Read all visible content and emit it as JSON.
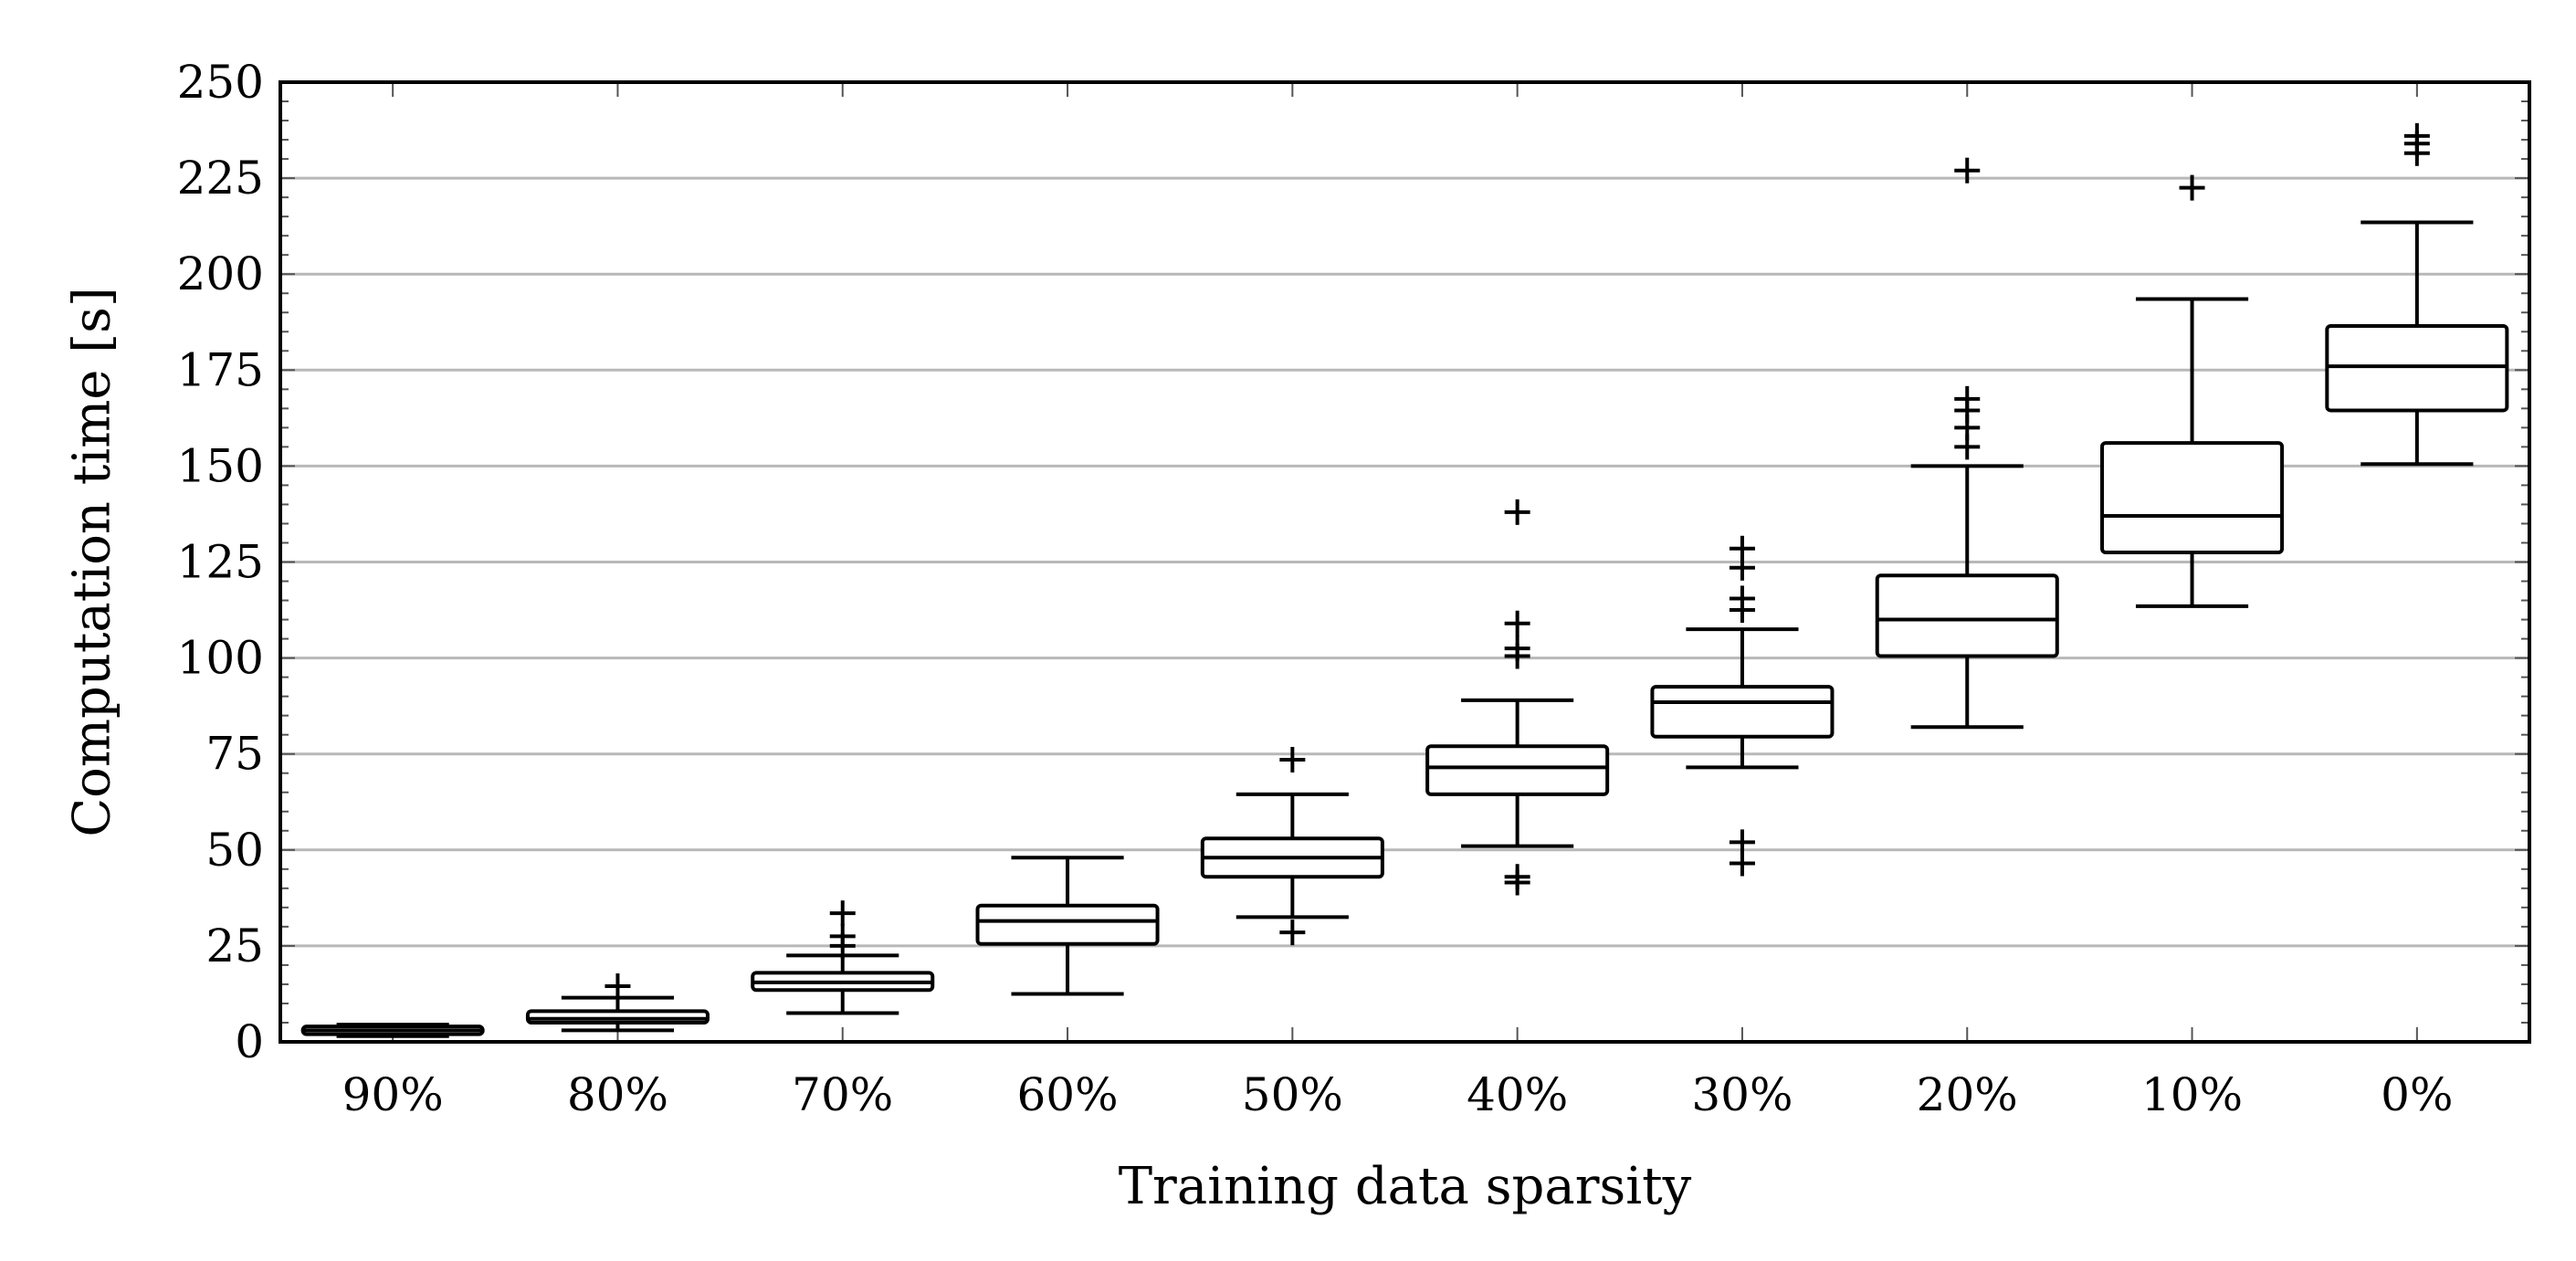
{
  "chart_data": {
    "type": "boxplot",
    "xlabel": "Training data sparsity",
    "ylabel": "Computation time [s]",
    "ylim": [
      0,
      250
    ],
    "yticks": [
      0,
      25,
      50,
      75,
      100,
      125,
      150,
      175,
      200,
      225,
      250
    ],
    "ytick_labels": [
      "0",
      "25",
      "50",
      "75",
      "100",
      "125",
      "150",
      "175",
      "200",
      "225",
      "250"
    ],
    "grid": "horizontal",
    "categories": [
      "90%",
      "80%",
      "70%",
      "60%",
      "50%",
      "40%",
      "30%",
      "20%",
      "10%",
      "0%"
    ],
    "boxes": [
      {
        "category": "90%",
        "whisker_low": 1.5,
        "q1": 2.0,
        "median": 3.0,
        "q3": 4.0,
        "whisker_high": 4.5,
        "outliers": []
      },
      {
        "category": "80%",
        "whisker_low": 3.0,
        "q1": 5.0,
        "median": 6.0,
        "q3": 8.0,
        "whisker_high": 11.5,
        "outliers": [
          14.5
        ]
      },
      {
        "category": "70%",
        "whisker_low": 7.5,
        "q1": 13.5,
        "median": 15.5,
        "q3": 18.0,
        "whisker_high": 22.5,
        "outliers": [
          25,
          27.5,
          33.5
        ]
      },
      {
        "category": "60%",
        "whisker_low": 12.5,
        "q1": 25.5,
        "median": 31.5,
        "q3": 35.5,
        "whisker_high": 48.0,
        "outliers": []
      },
      {
        "category": "50%",
        "whisker_low": 32.5,
        "q1": 43.0,
        "median": 48.0,
        "q3": 53.0,
        "whisker_high": 64.5,
        "outliers": [
          28.5,
          73.5
        ]
      },
      {
        "category": "40%",
        "whisker_low": 51.0,
        "q1": 64.5,
        "median": 71.5,
        "q3": 77.0,
        "whisker_high": 89.0,
        "outliers": [
          41.5,
          43.0,
          100.5,
          102.5,
          109.0,
          138.0
        ]
      },
      {
        "category": "30%",
        "whisker_low": 71.5,
        "q1": 79.5,
        "median": 88.5,
        "q3": 92.5,
        "whisker_high": 107.5,
        "outliers": [
          46.5,
          52.0,
          112.5,
          115.5,
          123.5,
          128.5
        ]
      },
      {
        "category": "20%",
        "whisker_low": 82.0,
        "q1": 100.5,
        "median": 110.0,
        "q3": 121.5,
        "whisker_high": 150.0,
        "outliers": [
          155.0,
          160.0,
          164.5,
          167.5,
          227.0
        ]
      },
      {
        "category": "10%",
        "whisker_low": 113.5,
        "q1": 127.5,
        "median": 137.0,
        "q3": 156.0,
        "whisker_high": 193.5,
        "outliers": [
          222.5
        ]
      },
      {
        "category": "0%",
        "whisker_low": 150.5,
        "q1": 164.5,
        "median": 176.0,
        "q3": 186.5,
        "whisker_high": 213.5,
        "outliers": [
          231.5,
          234.0,
          236.0
        ]
      }
    ]
  }
}
